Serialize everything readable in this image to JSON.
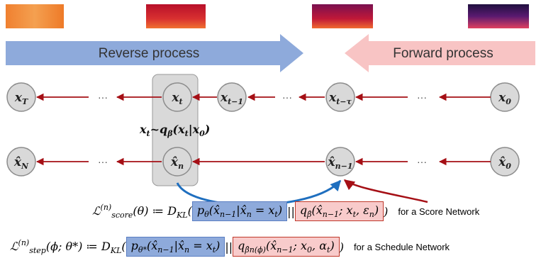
{
  "arrows": {
    "reverse": "Reverse process",
    "forward": "Forward process"
  },
  "ellipsis": "···",
  "nodes_top": [
    {
      "label": "x",
      "sub": "T"
    },
    {
      "label": "x",
      "sub": "t"
    },
    {
      "label": "x",
      "sub": "t−1"
    },
    {
      "label": "x",
      "sub": "t−τ"
    },
    {
      "label": "x",
      "sub": "0"
    }
  ],
  "nodes_bottom": [
    {
      "label": "x̂",
      "sub": "N"
    },
    {
      "label": "x̂",
      "sub": "n"
    },
    {
      "label": "x̂",
      "sub": "n−1"
    },
    {
      "label": "x̂",
      "sub": "0"
    }
  ],
  "sampling": [
    {
      "t": "x"
    },
    {
      "t": "t",
      "s": "sub"
    },
    {
      "t": "~q"
    },
    {
      "t": "β",
      "s": "sub"
    },
    {
      "t": "(x"
    },
    {
      "t": "t",
      "s": "sub"
    },
    {
      "t": "|x"
    },
    {
      "t": "0",
      "s": "sub"
    },
    {
      "t": ")"
    }
  ],
  "formulas": [
    {
      "lhs": [
        {
          "t": "ℒ"
        },
        {
          "t": "(n)",
          "s": "sup"
        },
        {
          "t": "score",
          "s": "sub"
        },
        {
          "t": "(θ) ≔ D"
        },
        {
          "t": "KL",
          "s": "sub"
        },
        {
          "t": "("
        }
      ],
      "box1": [
        {
          "t": "p"
        },
        {
          "t": "θ",
          "s": "sub"
        },
        {
          "t": "(x̂"
        },
        {
          "t": "n−1",
          "s": "sub"
        },
        {
          "t": "|x̂"
        },
        {
          "t": "n",
          "s": "sub"
        },
        {
          "t": " = x"
        },
        {
          "t": "t",
          "s": "sub"
        },
        {
          "t": ")"
        }
      ],
      "sep": "||",
      "box2": [
        {
          "t": "q"
        },
        {
          "t": "β̂",
          "s": "sub"
        },
        {
          "t": "(x̂"
        },
        {
          "t": "n−1",
          "s": "sub"
        },
        {
          "t": "; x"
        },
        {
          "t": "t",
          "s": "sub"
        },
        {
          "t": ", ε"
        },
        {
          "t": "n",
          "s": "sub"
        },
        {
          "t": ")"
        }
      ],
      "close": ")",
      "note": "for a Score Network"
    },
    {
      "lhs": [
        {
          "t": "ℒ"
        },
        {
          "t": "(n)",
          "s": "sup"
        },
        {
          "t": "step",
          "s": "sub"
        },
        {
          "t": "(ϕ; θ*) ≔ D"
        },
        {
          "t": "KL",
          "s": "sub"
        },
        {
          "t": "("
        }
      ],
      "box1": [
        {
          "t": "p"
        },
        {
          "t": "θ*",
          "s": "sub"
        },
        {
          "t": "(x̂"
        },
        {
          "t": "n−1",
          "s": "sub"
        },
        {
          "t": "|x̂"
        },
        {
          "t": "n",
          "s": "sub"
        },
        {
          "t": " = x"
        },
        {
          "t": "t",
          "s": "sub"
        },
        {
          "t": ")"
        }
      ],
      "sep": "||",
      "box2": [
        {
          "t": "q"
        },
        {
          "t": "β̂n(ϕ)",
          "s": "sub"
        },
        {
          "t": "(x̂"
        },
        {
          "t": "n−1",
          "s": "sub"
        },
        {
          "t": "; x"
        },
        {
          "t": "0",
          "s": "sub"
        },
        {
          "t": ", α"
        },
        {
          "t": "t",
          "s": "sub"
        },
        {
          "t": ")"
        }
      ],
      "close": ")",
      "note": "for a Schedule Network"
    }
  ]
}
